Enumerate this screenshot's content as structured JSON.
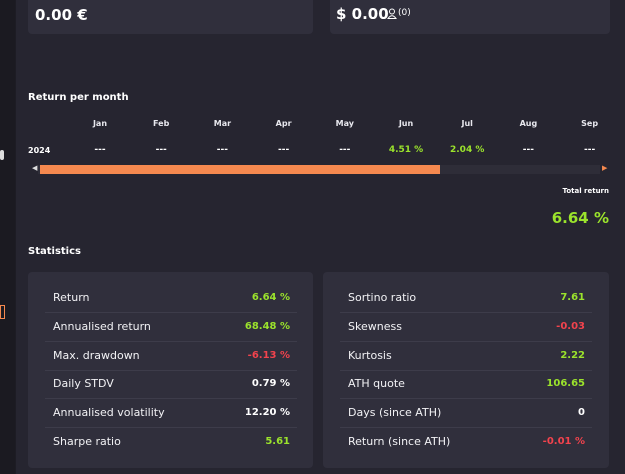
{
  "top_cards": [
    {
      "value": "0.00 €"
    },
    {
      "value": "$ 0.00",
      "count": "(0)"
    }
  ],
  "monthly": {
    "title": "Return per month",
    "months": [
      "Jan",
      "Feb",
      "Mar",
      "Apr",
      "May",
      "Jun",
      "Jul",
      "Aug",
      "Sep"
    ],
    "rows": [
      {
        "year": "2024",
        "values": [
          "---",
          "---",
          "---",
          "---",
          "---",
          "4.51 %",
          "2.04 %",
          "---",
          "---"
        ],
        "colors": [
          "#ffffff",
          "#ffffff",
          "#ffffff",
          "#ffffff",
          "#ffffff",
          "#9be32c",
          "#9be32c",
          "#ffffff",
          "#ffffff"
        ]
      }
    ],
    "total_label": "Total return",
    "total_value": "6.64 %",
    "total_color": "#9be32c"
  },
  "statistics": {
    "title": "Statistics",
    "columns": [
      [
        {
          "label": "Return",
          "value": "6.64 %",
          "color": "#9be32c"
        },
        {
          "label": "Annualised return",
          "value": "68.48 %",
          "color": "#9be32c"
        },
        {
          "label": "Max. drawdown",
          "value": "-6.13 %",
          "color": "#f2434d"
        },
        {
          "label": "Daily STDV",
          "value": "0.79 %",
          "color": "#ffffff"
        },
        {
          "label": "Annualised volatility",
          "value": "12.20 %",
          "color": "#ffffff"
        },
        {
          "label": "Sharpe ratio",
          "value": "5.61",
          "color": "#9be32c"
        }
      ],
      [
        {
          "label": "Sortino ratio",
          "value": "7.61",
          "color": "#9be32c"
        },
        {
          "label": "Skewness",
          "value": "-0.03",
          "color": "#f2434d"
        },
        {
          "label": "Kurtosis",
          "value": "2.22",
          "color": "#9be32c"
        },
        {
          "label": "ATH quote",
          "value": "106.65",
          "color": "#9be32c"
        },
        {
          "label": "Days (since ATH)",
          "value": "0",
          "color": "#ffffff"
        },
        {
          "label": "Return (since ATH)",
          "value": "-0.01 %",
          "color": "#f2434d"
        }
      ]
    ]
  }
}
